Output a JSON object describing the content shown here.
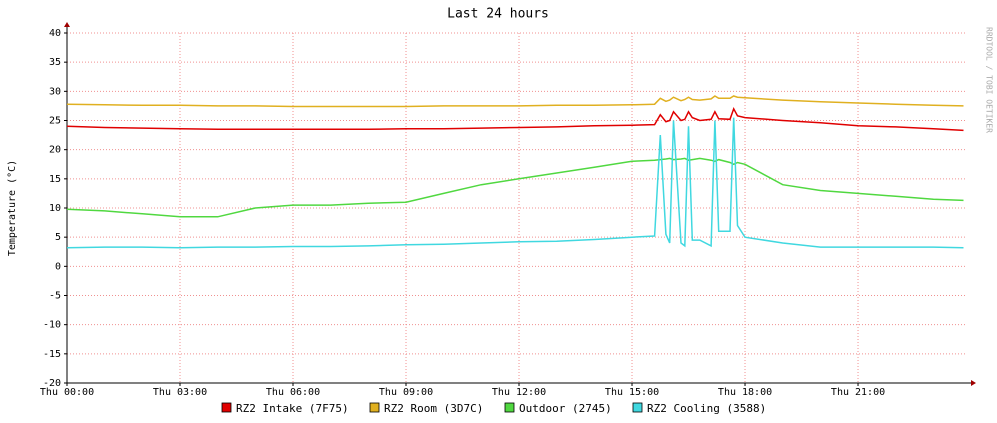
{
  "chart_data": {
    "type": "line",
    "title": "Last 24 hours",
    "ylabel": "Temperature (°C)",
    "watermark": "RRDTOOL / TOBI OETIKER",
    "x": [
      0,
      1,
      2,
      3,
      4,
      5,
      6,
      7,
      8,
      9,
      10,
      11,
      12,
      13,
      14,
      15,
      15.6,
      15.75,
      15.9,
      16.0,
      16.1,
      16.3,
      16.4,
      16.5,
      16.6,
      16.8,
      17.1,
      17.2,
      17.3,
      17.6,
      17.7,
      17.8,
      18,
      19,
      20,
      21,
      22,
      23,
      23.8
    ],
    "xlim": [
      0,
      23.84
    ],
    "xticks": [
      {
        "value": 0,
        "label": "Thu 00:00"
      },
      {
        "value": 3,
        "label": "Thu 03:00"
      },
      {
        "value": 6,
        "label": "Thu 06:00"
      },
      {
        "value": 9,
        "label": "Thu 09:00"
      },
      {
        "value": 12,
        "label": "Thu 12:00"
      },
      {
        "value": 15,
        "label": "Thu 15:00"
      },
      {
        "value": 18,
        "label": "Thu 18:00"
      },
      {
        "value": 21,
        "label": "Thu 21:00"
      }
    ],
    "ylim": [
      -20,
      40
    ],
    "yticks": [
      -20,
      -15,
      -10,
      -5,
      0,
      5,
      10,
      15,
      20,
      25,
      30,
      35,
      40
    ],
    "grid": true,
    "series": [
      {
        "name": "RZ2 Intake (7F75)",
        "color": "#e00000",
        "values": [
          24,
          23.8,
          23.7,
          23.6,
          23.5,
          23.5,
          23.5,
          23.5,
          23.5,
          23.6,
          23.6,
          23.7,
          23.8,
          23.9,
          24.1,
          24.2,
          24.3,
          26,
          24.8,
          25,
          26.5,
          25,
          25.2,
          26.5,
          25.5,
          25,
          25.2,
          26.5,
          25.3,
          25.2,
          27,
          25.8,
          25.5,
          25,
          24.6,
          24.1,
          23.9,
          23.6,
          23.3
        ]
      },
      {
        "name": "RZ2 Room (3D7C)",
        "color": "#e0b020",
        "values": [
          27.8,
          27.7,
          27.6,
          27.6,
          27.5,
          27.5,
          27.4,
          27.4,
          27.4,
          27.4,
          27.5,
          27.5,
          27.5,
          27.6,
          27.6,
          27.7,
          27.8,
          28.8,
          28.3,
          28.5,
          29,
          28.4,
          28.6,
          29,
          28.6,
          28.5,
          28.7,
          29.2,
          28.8,
          28.8,
          29.2,
          29,
          28.9,
          28.5,
          28.2,
          28,
          27.8,
          27.6,
          27.5
        ]
      },
      {
        "name": "Outdoor (2745)",
        "color": "#50d840",
        "values": [
          9.8,
          9.5,
          9,
          8.5,
          8.5,
          10,
          10.5,
          10.5,
          10.8,
          11,
          12.5,
          14,
          15,
          16,
          17,
          18,
          18.2,
          18.3,
          18.4,
          18.5,
          18.3,
          18.4,
          18.5,
          18.2,
          18.3,
          18.5,
          18.2,
          18,
          18.3,
          17.8,
          17.5,
          17.8,
          17.5,
          14,
          13,
          12.5,
          12,
          11.5,
          11.3
        ]
      },
      {
        "name": "RZ2 Cooling (3588)",
        "color": "#40d8e0",
        "values": [
          3.2,
          3.3,
          3.3,
          3.2,
          3.3,
          3.3,
          3.4,
          3.4,
          3.5,
          3.7,
          3.8,
          4,
          4.2,
          4.3,
          4.6,
          5,
          5.2,
          22.5,
          5.5,
          4,
          25,
          4,
          3.5,
          24,
          4.5,
          4.5,
          3.5,
          25,
          6,
          6,
          25.5,
          7,
          5,
          4,
          3.3,
          3.3,
          3.3,
          3.3,
          3.2
        ]
      }
    ]
  }
}
